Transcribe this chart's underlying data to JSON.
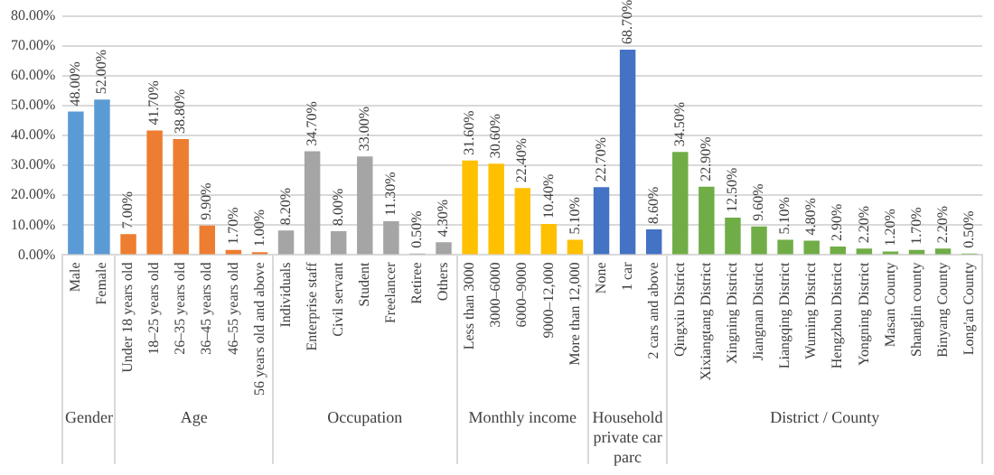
{
  "chart_data": {
    "type": "bar",
    "categories": [
      "Male",
      "Female",
      "Under 18 years old",
      "18–25 years old",
      "26–35 years old",
      "36–45 years old",
      "46–55 years old",
      "56 years old and above",
      "Individuals",
      "Enterprise staff",
      "Civil servant",
      "Student",
      "Freelancer",
      "Retiree",
      "Others",
      "Less than 3000",
      "3000–6000",
      "6000–9000",
      "9000–12,000",
      "More than 12,000",
      "None",
      "1 car",
      "2 cars and above",
      "Qingxiu District",
      "Xixiangtang District",
      "Xingning District",
      "Jiangnan District",
      "Liangqing District",
      "Wuming District",
      "Hengzhou District",
      "Yongning District",
      "Masan County",
      "Shanglin county",
      "Binyang County",
      "Long'an County"
    ],
    "series": [
      {
        "color": "#5b9bd5",
        "values": [
          48,
          52,
          null,
          null,
          null,
          null,
          null,
          null,
          null,
          null,
          null,
          null,
          null,
          null,
          null,
          null,
          null,
          null,
          null,
          null,
          null,
          null,
          null,
          null,
          null,
          null,
          null,
          null,
          null,
          null,
          null,
          null,
          null,
          null,
          null
        ],
        "value_labels": [
          "48.00%",
          "52.00%",
          null,
          null,
          null,
          null,
          null,
          null,
          null,
          null,
          null,
          null,
          null,
          null,
          null,
          null,
          null,
          null,
          null,
          null,
          null,
          null,
          null,
          null,
          null,
          null,
          null,
          null,
          null,
          null,
          null,
          null,
          null,
          null,
          null
        ]
      },
      {
        "color": "#ed7d31",
        "values": [
          null,
          null,
          7,
          41.7,
          38.8,
          9.9,
          1.7,
          1,
          null,
          null,
          null,
          null,
          null,
          null,
          null,
          null,
          null,
          null,
          null,
          null,
          null,
          null,
          null,
          null,
          null,
          null,
          null,
          null,
          null,
          null,
          null,
          null,
          null,
          null,
          null
        ],
        "value_labels": [
          null,
          null,
          "7.00%",
          "41.70%",
          "38.80%",
          "9.90%",
          "1.70%",
          "1.00%",
          null,
          null,
          null,
          null,
          null,
          null,
          null,
          null,
          null,
          null,
          null,
          null,
          null,
          null,
          null,
          null,
          null,
          null,
          null,
          null,
          null,
          null,
          null,
          null,
          null,
          null,
          null
        ]
      },
      {
        "color": "#a5a5a5",
        "values": [
          null,
          null,
          null,
          null,
          null,
          null,
          null,
          null,
          8.2,
          34.7,
          8,
          33,
          11.3,
          0.5,
          4.3,
          null,
          null,
          null,
          null,
          null,
          null,
          null,
          null,
          null,
          null,
          null,
          null,
          null,
          null,
          null,
          null,
          null,
          null,
          null,
          null
        ],
        "value_labels": [
          null,
          null,
          null,
          null,
          null,
          null,
          null,
          null,
          "8.20%",
          "34.70%",
          "8.00%",
          "33.00%",
          "11.30%",
          "0.50%",
          "4.30%",
          null,
          null,
          null,
          null,
          null,
          null,
          null,
          null,
          null,
          null,
          null,
          null,
          null,
          null,
          null,
          null,
          null,
          null,
          null,
          null
        ]
      },
      {
        "color": "#ffc000",
        "values": [
          null,
          null,
          null,
          null,
          null,
          null,
          null,
          null,
          null,
          null,
          null,
          null,
          null,
          null,
          null,
          31.6,
          30.6,
          22.4,
          10.4,
          5.1,
          null,
          null,
          null,
          null,
          null,
          null,
          null,
          null,
          null,
          null,
          null,
          null,
          null,
          null,
          null
        ],
        "value_labels": [
          null,
          null,
          null,
          null,
          null,
          null,
          null,
          null,
          null,
          null,
          null,
          null,
          null,
          null,
          null,
          "31.60%",
          "30.60%",
          "22.40%",
          "10.40%",
          "5.10%",
          null,
          null,
          null,
          null,
          null,
          null,
          null,
          null,
          null,
          null,
          null,
          null,
          null,
          null,
          null
        ]
      },
      {
        "color": "#4472c4",
        "values": [
          null,
          null,
          null,
          null,
          null,
          null,
          null,
          null,
          null,
          null,
          null,
          null,
          null,
          null,
          null,
          null,
          null,
          null,
          null,
          null,
          22.7,
          68.7,
          8.6,
          null,
          null,
          null,
          null,
          null,
          null,
          null,
          null,
          null,
          null,
          null,
          null
        ],
        "value_labels": [
          null,
          null,
          null,
          null,
          null,
          null,
          null,
          null,
          null,
          null,
          null,
          null,
          null,
          null,
          null,
          null,
          null,
          null,
          null,
          null,
          "22.70%",
          "68.70%",
          "8.60%",
          null,
          null,
          null,
          null,
          null,
          null,
          null,
          null,
          null,
          null,
          null,
          null
        ]
      },
      {
        "color": "#70ad47",
        "values": [
          null,
          null,
          null,
          null,
          null,
          null,
          null,
          null,
          null,
          null,
          null,
          null,
          null,
          null,
          null,
          null,
          null,
          null,
          null,
          null,
          null,
          null,
          null,
          34.5,
          22.9,
          12.5,
          9.6,
          5.1,
          4.8,
          2.9,
          2.2,
          1.2,
          1.7,
          2.2,
          0.5
        ],
        "value_labels": [
          null,
          null,
          null,
          null,
          null,
          null,
          null,
          null,
          null,
          null,
          null,
          null,
          null,
          null,
          null,
          null,
          null,
          null,
          null,
          null,
          null,
          null,
          null,
          "34.50%",
          "22.90%",
          "12.50%",
          "9.60%",
          "5.10%",
          "4.80%",
          "2.90%",
          "2.20%",
          "1.20%",
          "1.70%",
          "2.20%",
          "0.50%"
        ]
      }
    ],
    "ylim": [
      0,
      80
    ],
    "yticks": [
      {
        "value": 0,
        "label": "0.00%"
      },
      {
        "value": 10,
        "label": "10.00%"
      },
      {
        "value": 20,
        "label": "20.00%"
      },
      {
        "value": 30,
        "label": "30.00%"
      },
      {
        "value": 40,
        "label": "40.00%"
      },
      {
        "value": 50,
        "label": "50.00%"
      },
      {
        "value": 60,
        "label": "60.00%"
      },
      {
        "value": 70,
        "label": "70.00%"
      },
      {
        "value": 80,
        "label": "80.00%"
      }
    ],
    "annotations": [
      "Gender",
      "Age",
      "Occupation",
      "Monthly income",
      "Household private car parc",
      "District / County"
    ],
    "grid": "y",
    "legend": false
  }
}
